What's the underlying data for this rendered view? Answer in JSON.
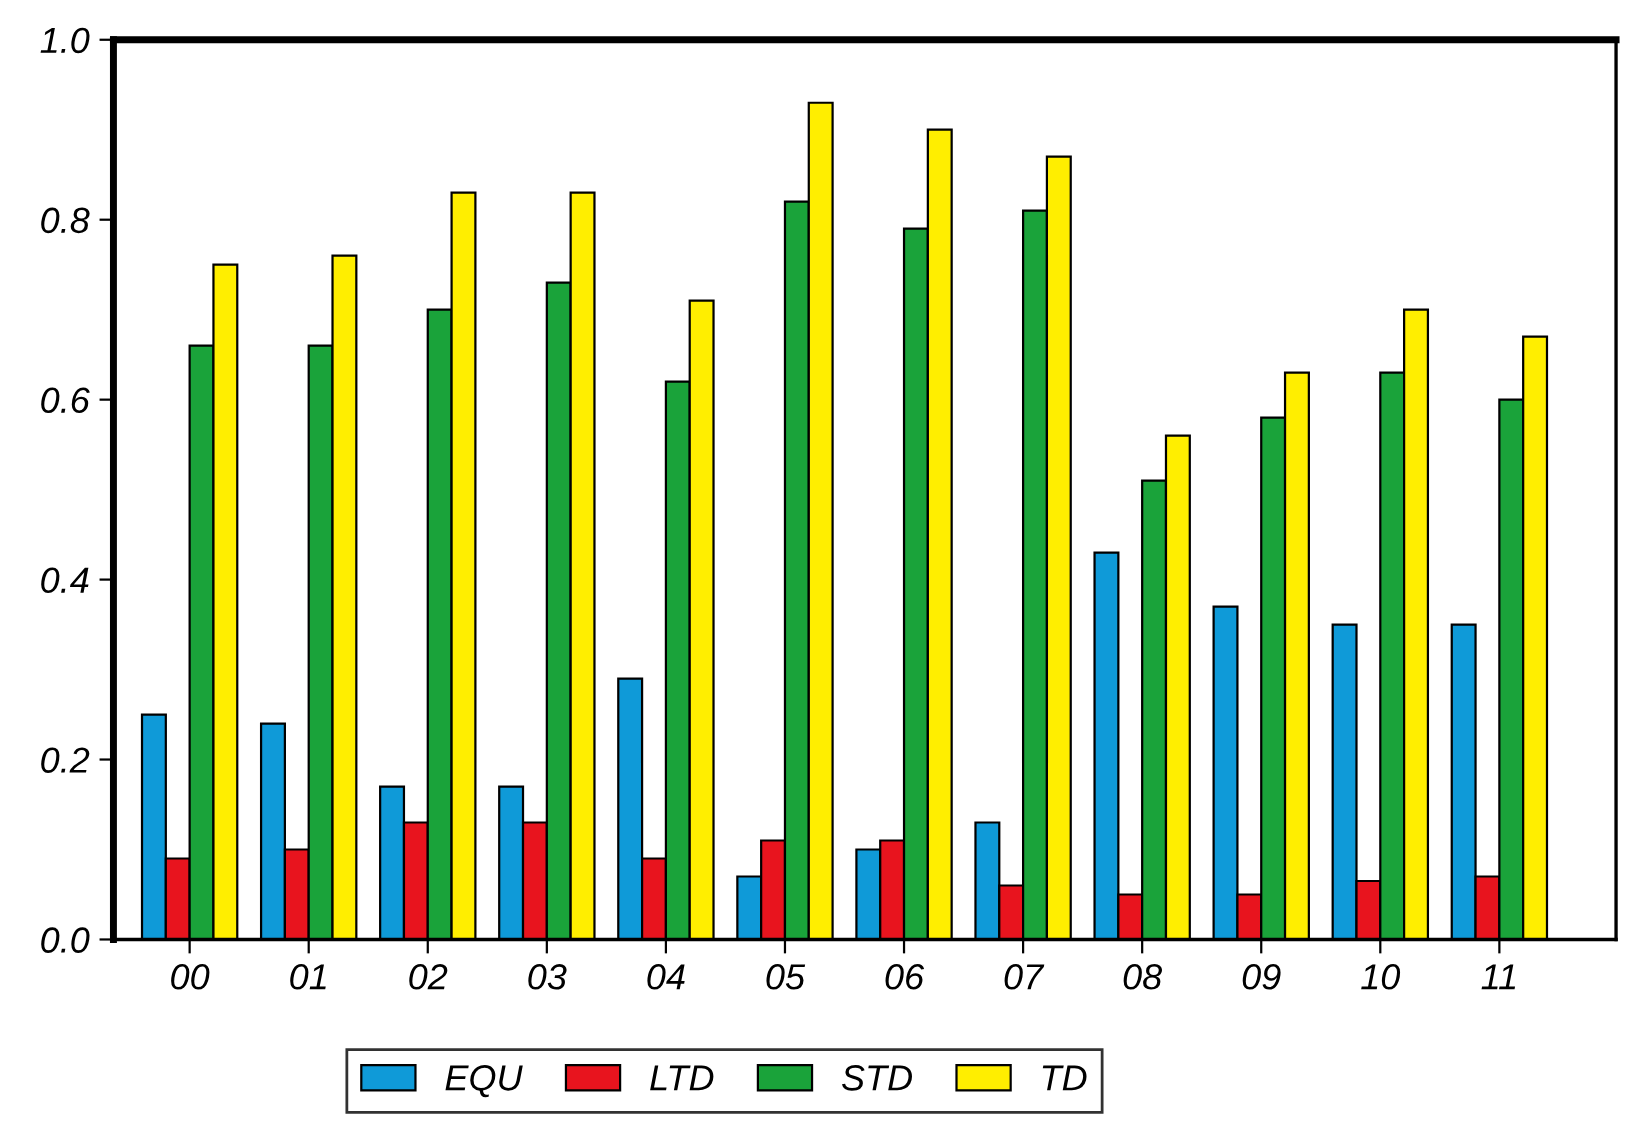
{
  "chart_data": {
    "type": "bar",
    "categories": [
      "00",
      "01",
      "02",
      "03",
      "04",
      "05",
      "06",
      "07",
      "08",
      "09",
      "10",
      "11"
    ],
    "series": [
      {
        "name": "EQU",
        "color": "#0f9ad8",
        "values": [
          0.25,
          0.24,
          0.17,
          0.17,
          0.29,
          0.07,
          0.1,
          0.13,
          0.43,
          0.37,
          0.35,
          0.35
        ]
      },
      {
        "name": "LTD",
        "color": "#e8141e",
        "values": [
          0.09,
          0.1,
          0.13,
          0.13,
          0.09,
          0.11,
          0.11,
          0.06,
          0.05,
          0.05,
          0.065,
          0.07
        ]
      },
      {
        "name": "STD",
        "color": "#1aa33a",
        "values": [
          0.66,
          0.66,
          0.7,
          0.73,
          0.62,
          0.82,
          0.79,
          0.81,
          0.51,
          0.58,
          0.63,
          0.6
        ]
      },
      {
        "name": "TD",
        "color": "#ffee00",
        "values": [
          0.75,
          0.76,
          0.83,
          0.83,
          0.71,
          0.93,
          0.9,
          0.87,
          0.56,
          0.63,
          0.7,
          0.67
        ]
      }
    ],
    "ylim": [
      0,
      1.0
    ],
    "yticks": [
      {
        "value": 0,
        "label": "0.0"
      },
      {
        "value": 0.2,
        "label": "0.2"
      },
      {
        "value": 0.4,
        "label": "0.4"
      },
      {
        "value": 0.6,
        "label": "0.6"
      },
      {
        "value": 0.8,
        "label": "0.8"
      },
      {
        "value": 1.0,
        "label": "1.0"
      }
    ],
    "grid": false,
    "legend": "bottom"
  }
}
